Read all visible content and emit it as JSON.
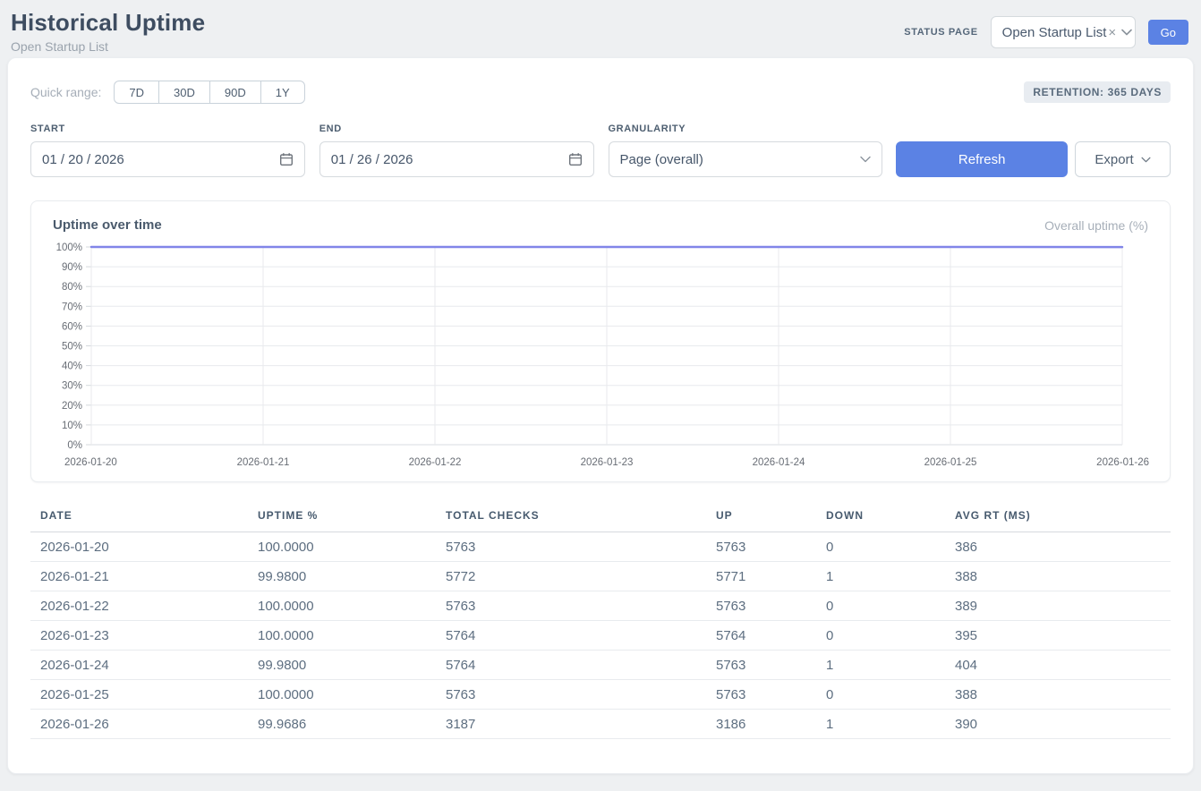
{
  "header": {
    "title": "Historical Uptime",
    "subtitle": "Open Startup List",
    "status_page_label": "STATUS PAGE",
    "status_page_value": "Open Startup List",
    "clear_icon": "×",
    "go_label": "Go"
  },
  "filters": {
    "quick_range_label": "Quick range:",
    "quick_ranges": [
      "7D",
      "30D",
      "90D",
      "1Y"
    ],
    "retention_badge": "RETENTION: 365 DAYS",
    "start_label": "START",
    "start_value": "01 / 20 / 2026",
    "end_label": "END",
    "end_value": "01 / 26 / 2026",
    "granularity_label": "GRANULARITY",
    "granularity_value": "Page (overall)",
    "refresh_label": "Refresh",
    "export_label": "Export"
  },
  "chart": {
    "title": "Uptime over time",
    "legend": "Overall uptime (%)"
  },
  "chart_data": {
    "type": "line",
    "title": "Uptime over time",
    "legend": [
      "Overall uptime (%)"
    ],
    "legend_position": "top-right",
    "x": [
      "2026-01-20",
      "2026-01-21",
      "2026-01-22",
      "2026-01-23",
      "2026-01-24",
      "2026-01-25",
      "2026-01-26"
    ],
    "series": [
      {
        "name": "Overall uptime (%)",
        "values": [
          100.0,
          99.98,
          100.0,
          100.0,
          99.98,
          100.0,
          99.9686
        ]
      }
    ],
    "ylim": [
      0,
      100
    ],
    "y_ticks": [
      "0%",
      "10%",
      "20%",
      "30%",
      "40%",
      "50%",
      "60%",
      "70%",
      "80%",
      "90%",
      "100%"
    ],
    "grid": true,
    "line_color": "#8185e8"
  },
  "table": {
    "columns": [
      "DATE",
      "UPTIME %",
      "TOTAL CHECKS",
      "UP",
      "DOWN",
      "AVG RT (MS)"
    ],
    "rows": [
      [
        "2026-01-20",
        "100.0000",
        "5763",
        "5763",
        "0",
        "386"
      ],
      [
        "2026-01-21",
        "99.9800",
        "5772",
        "5771",
        "1",
        "388"
      ],
      [
        "2026-01-22",
        "100.0000",
        "5763",
        "5763",
        "0",
        "389"
      ],
      [
        "2026-01-23",
        "100.0000",
        "5764",
        "5764",
        "0",
        "395"
      ],
      [
        "2026-01-24",
        "99.9800",
        "5764",
        "5763",
        "1",
        "404"
      ],
      [
        "2026-01-25",
        "100.0000",
        "5763",
        "5763",
        "0",
        "388"
      ],
      [
        "2026-01-26",
        "99.9686",
        "3187",
        "3186",
        "1",
        "390"
      ]
    ]
  },
  "colors": {
    "accent_blue": "#5b82e4",
    "line_purple": "#8185e8",
    "grid": "#e8eaed",
    "axis_text": "#686d75",
    "page_bg": "#eef0f2"
  }
}
